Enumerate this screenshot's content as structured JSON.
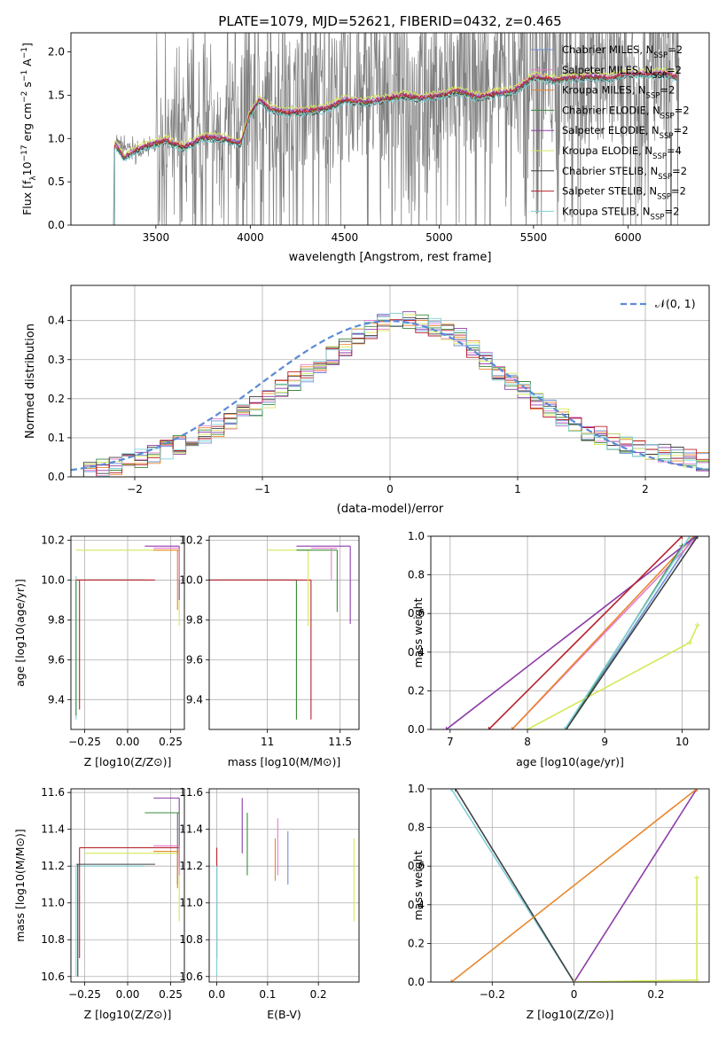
{
  "chart_data": [
    {
      "type": "line",
      "title": "PLATE=1079, MJD=52621, FIBERID=0432, z=0.465",
      "xlabel": "wavelength [Angstrom, rest frame]",
      "ylabel": "Flux [f_λ 10^-17 erg cm^-2 s^-1 A^-1]",
      "xlim": [
        3050,
        6430
      ],
      "ylim": [
        0,
        2.22
      ],
      "xticks": [
        3500,
        4000,
        4500,
        5000,
        5500,
        6000
      ],
      "yticks": [
        0.0,
        0.5,
        1.0,
        1.5,
        2.0
      ],
      "grid": false,
      "legend_position": "top-right",
      "data_series": {
        "name": "",
        "color": "#808080",
        "x_range": [
          3280,
          6270
        ],
        "continuum": [
          [
            3280,
            0.95
          ],
          [
            3400,
            0.85
          ],
          [
            3550,
            0.95
          ],
          [
            3700,
            1.0
          ],
          [
            3900,
            1.1
          ],
          [
            4000,
            1.3
          ],
          [
            4200,
            1.4
          ],
          [
            4500,
            1.45
          ],
          [
            4800,
            1.55
          ],
          [
            5000,
            1.55
          ],
          [
            5200,
            1.6
          ],
          [
            5500,
            1.75
          ],
          [
            5800,
            1.7
          ],
          [
            6000,
            1.75
          ],
          [
            6270,
            1.6
          ]
        ]
      },
      "model_continuum": [
        [
          3280,
          0.95
        ],
        [
          3330,
          0.78
        ],
        [
          3400,
          0.88
        ],
        [
          3500,
          0.95
        ],
        [
          3550,
          0.98
        ],
        [
          3650,
          0.9
        ],
        [
          3750,
          1.02
        ],
        [
          3850,
          1.0
        ],
        [
          3950,
          0.95
        ],
        [
          4000,
          1.3
        ],
        [
          4050,
          1.45
        ],
        [
          4100,
          1.35
        ],
        [
          4200,
          1.3
        ],
        [
          4300,
          1.32
        ],
        [
          4400,
          1.35
        ],
        [
          4500,
          1.45
        ],
        [
          4600,
          1.42
        ],
        [
          4700,
          1.45
        ],
        [
          4800,
          1.5
        ],
        [
          4900,
          1.47
        ],
        [
          5000,
          1.5
        ],
        [
          5100,
          1.55
        ],
        [
          5200,
          1.48
        ],
        [
          5300,
          1.52
        ],
        [
          5400,
          1.55
        ],
        [
          5500,
          1.72
        ],
        [
          5600,
          1.68
        ],
        [
          5700,
          1.7
        ],
        [
          5800,
          1.72
        ],
        [
          5900,
          1.7
        ],
        [
          6000,
          1.75
        ],
        [
          6100,
          1.75
        ],
        [
          6200,
          1.75
        ],
        [
          6250,
          1.72
        ]
      ],
      "series": [
        {
          "name": "Chabrier MILES, N_SSP=2",
          "color": "#6f8fd8",
          "offset": 0.01
        },
        {
          "name": "Salpeter MILES, N_SSP=2",
          "color": "#e77ed0",
          "offset": 0.02
        },
        {
          "name": "Kroupa MILES, N_SSP=2",
          "color": "#e8882e",
          "offset": -0.01
        },
        {
          "name": "Chabrier ELODIE, N_SSP=2",
          "color": "#3b8b3b",
          "offset": -0.02
        },
        {
          "name": "Salpeter ELODIE, N_SSP=2",
          "color": "#8d3ca8",
          "offset": 0.0
        },
        {
          "name": "Kroupa ELODIE, N_SSP=4",
          "color": "#d6e85a",
          "offset": 0.04
        },
        {
          "name": "Chabrier STELIB, N_SSP=2",
          "color": "#404040",
          "offset": -0.03
        },
        {
          "name": "Salpeter STELIB, N_SSP=2",
          "color": "#b8232e",
          "offset": 0.0
        },
        {
          "name": "Kroupa STELIB, N_SSP=2",
          "color": "#7fd0d8",
          "offset": -0.04
        }
      ]
    },
    {
      "type": "line",
      "xlabel": "(data-model)/error",
      "ylabel": "Normed distribution",
      "xlim": [
        -2.5,
        2.5
      ],
      "ylim": [
        0,
        0.49
      ],
      "xticks": [
        -2,
        -1,
        0,
        1,
        2
      ],
      "yticks": [
        0.0,
        0.1,
        0.2,
        0.3,
        0.4
      ],
      "grid": true,
      "legend_position": "top-right",
      "reference": {
        "name": "N(0,1)",
        "color": "#5b8bd6"
      },
      "histogram_bin_width": 0.1,
      "histogram_shape": [
        [
          -2.5,
          0.005
        ],
        [
          -2.0,
          0.04
        ],
        [
          -1.5,
          0.1
        ],
        [
          -1.0,
          0.19
        ],
        [
          -0.5,
          0.3
        ],
        [
          0.0,
          0.41
        ],
        [
          0.5,
          0.37
        ],
        [
          1.0,
          0.23
        ],
        [
          1.5,
          0.12
        ],
        [
          2.0,
          0.07
        ],
        [
          2.5,
          0.035
        ]
      ]
    },
    {
      "type": "scatter",
      "xlabel": "Z [log10(Z/Z⊙)]",
      "ylabel": "age  [log10(age/yr)]",
      "xlim": [
        -0.33,
        0.33
      ],
      "ylim": [
        9.25,
        10.22
      ],
      "xticks": [
        -0.25,
        0.0,
        0.25
      ],
      "xtick_labels": [
        "-0.25",
        "0.00",
        "0.25"
      ],
      "yticks": [
        9.4,
        9.6,
        9.8,
        10.0,
        10.2
      ],
      "grid": true,
      "segments": [
        {
          "color": "#7fd0d8",
          "h": [
            -0.3,
            0.15,
            10.0
          ],
          "v": [
            -0.3,
            9.3,
            10.02
          ]
        },
        {
          "color": "#3b8b3b",
          "h": [
            -0.3,
            0.1,
            10.0
          ],
          "v": [
            -0.3,
            9.32,
            10.0
          ]
        },
        {
          "color": "#b8232e",
          "h": [
            -0.3,
            0.16,
            10.0
          ],
          "v": [
            -0.28,
            9.35,
            10.0
          ]
        },
        {
          "color": "#d6e85a",
          "h": [
            -0.3,
            0.3,
            10.15
          ],
          "v": [
            0.3,
            9.77,
            10.15
          ]
        },
        {
          "color": "#8d3ca8",
          "h": [
            0.1,
            0.3,
            10.17
          ],
          "v": [
            0.3,
            9.9,
            10.17
          ]
        },
        {
          "color": "#e8882e",
          "h": [
            0.15,
            0.3,
            10.15
          ],
          "v": [
            0.29,
            9.85,
            10.15
          ]
        },
        {
          "color": "#e77ed0",
          "h": [
            0.15,
            0.3,
            10.16
          ],
          "v": [
            0.3,
            10.0,
            10.16
          ]
        }
      ]
    },
    {
      "type": "scatter",
      "xlabel": "mass [log10(M/M⊙)]",
      "ylabel": "",
      "xlim": [
        10.6,
        11.63
      ],
      "ylim": [
        9.25,
        10.22
      ],
      "xticks": [
        11.0,
        11.5
      ],
      "yticks": [
        9.4,
        9.6,
        9.8,
        10.0,
        10.2
      ],
      "grid": true,
      "segments": [
        {
          "color": "#7fd0d8",
          "h": [
            10.6,
            11.2,
            10.0
          ],
          "v": [
            11.2,
            9.3,
            10.0
          ]
        },
        {
          "color": "#3b8b3b",
          "h": [
            10.6,
            11.2,
            10.0
          ],
          "v": [
            11.2,
            9.3,
            10.0
          ]
        },
        {
          "color": "#b8232e",
          "h": [
            10.6,
            11.3,
            10.0
          ],
          "v": [
            11.3,
            9.3,
            10.0
          ]
        },
        {
          "color": "#d6e85a",
          "h": [
            11.0,
            11.3,
            10.15
          ],
          "v": [
            11.28,
            9.77,
            10.15
          ]
        },
        {
          "color": "#8d3ca8",
          "h": [
            11.2,
            11.57,
            10.17
          ],
          "v": [
            11.57,
            9.78,
            10.17
          ]
        },
        {
          "color": "#3b8b3b",
          "h": [
            11.2,
            11.48,
            10.15
          ],
          "v": [
            11.48,
            9.84,
            10.15
          ]
        },
        {
          "color": "#e77ed0",
          "h": [
            11.3,
            11.48,
            10.16
          ],
          "v": [
            11.44,
            10.0,
            10.16
          ]
        }
      ]
    },
    {
      "type": "line",
      "xlabel": "age  [log10(age/yr)]",
      "ylabel": "mass weight",
      "xlim": [
        6.75,
        10.35
      ],
      "ylim": [
        0,
        1.0
      ],
      "xticks": [
        7,
        8,
        9,
        10
      ],
      "yticks": [
        0.0,
        0.2,
        0.4,
        0.6,
        0.8,
        1.0
      ],
      "grid": true,
      "series": [
        {
          "name": "Chabrier MILES",
          "color": "#6f8fd8",
          "points": [
            [
              8.5,
              0
            ],
            [
              10.15,
              1.0
            ]
          ]
        },
        {
          "name": "Salpeter MILES",
          "color": "#e77ed0",
          "points": [
            [
              7.8,
              0
            ],
            [
              10.2,
              1.0
            ]
          ]
        },
        {
          "name": "Kroupa MILES",
          "color": "#e8882e",
          "points": [
            [
              7.8,
              0
            ],
            [
              10.15,
              1.0
            ]
          ]
        },
        {
          "name": "Chabrier ELODIE",
          "color": "#3b8b3b",
          "points": [
            [
              8.5,
              0
            ],
            [
              10.0,
              0.95
            ],
            [
              10.2,
              1.0
            ]
          ]
        },
        {
          "name": "Salpeter ELODIE",
          "color": "#8d3ca8",
          "points": [
            [
              6.95,
              0
            ],
            [
              10.18,
              1.0
            ]
          ]
        },
        {
          "name": "Kroupa ELODIE",
          "color": "#d6e85a",
          "points": [
            [
              8.0,
              0
            ],
            [
              10.1,
              0.45
            ],
            [
              10.2,
              0.54
            ]
          ]
        },
        {
          "name": "Chabrier STELIB",
          "color": "#404040",
          "points": [
            [
              8.5,
              0
            ],
            [
              10.2,
              1.0
            ]
          ]
        },
        {
          "name": "Salpeter STELIB",
          "color": "#b8232e",
          "points": [
            [
              7.5,
              0
            ],
            [
              10.0,
              1.0
            ]
          ]
        },
        {
          "name": "Kroupa STELIB",
          "color": "#7fd0d8",
          "points": [
            [
              8.48,
              0
            ],
            [
              10.1,
              1.0
            ]
          ]
        }
      ]
    },
    {
      "type": "scatter",
      "xlabel": "Z [log10(Z/Z⊙)]",
      "ylabel": "mass [log10(M/M⊙)]",
      "xlim": [
        -0.33,
        0.33
      ],
      "ylim": [
        10.57,
        11.62
      ],
      "xticks": [
        -0.25,
        0.0,
        0.25
      ],
      "xtick_labels": [
        "-0.25",
        "0.00",
        "0.25"
      ],
      "yticks": [
        10.6,
        10.8,
        11.0,
        11.2,
        11.4,
        11.6
      ],
      "grid": true,
      "segments": [
        {
          "color": "#7fd0d8",
          "h": [
            -0.3,
            0.1,
            11.2
          ],
          "v": [
            -0.3,
            10.6,
            11.2
          ]
        },
        {
          "color": "#404040",
          "h": [
            -0.3,
            0.16,
            11.21
          ],
          "v": [
            -0.29,
            10.6,
            11.21
          ]
        },
        {
          "color": "#b8232e",
          "h": [
            -0.28,
            0.3,
            11.3
          ],
          "v": [
            -0.28,
            10.7,
            11.3
          ]
        },
        {
          "color": "#d6e85a",
          "h": [
            -0.25,
            0.3,
            11.27
          ],
          "v": [
            0.3,
            10.9,
            11.27
          ]
        },
        {
          "color": "#8d3ca8",
          "h": [
            0.15,
            0.3,
            11.57
          ],
          "v": [
            0.3,
            11.2,
            11.57
          ]
        },
        {
          "color": "#3b8b3b",
          "h": [
            0.1,
            0.3,
            11.49
          ],
          "v": [
            0.29,
            11.1,
            11.49
          ]
        },
        {
          "color": "#e8882e",
          "h": [
            0.15,
            0.3,
            11.28
          ],
          "v": [
            0.29,
            11.08,
            11.28
          ]
        },
        {
          "color": "#e77ed0",
          "h": [
            0.15,
            0.3,
            11.31
          ],
          "v": [
            0.3,
            11.15,
            11.31
          ]
        }
      ]
    },
    {
      "type": "scatter",
      "xlabel": "E(B-V)",
      "ylabel": "",
      "xlim": [
        -0.015,
        0.28
      ],
      "ylim": [
        10.57,
        11.62
      ],
      "xticks": [
        0.0,
        0.1,
        0.2
      ],
      "yticks": [
        10.6,
        10.8,
        11.0,
        11.2,
        11.4,
        11.6
      ],
      "grid": true,
      "segments": [
        {
          "color": "#b8232e",
          "v": [
            0.0,
            10.7,
            11.3
          ]
        },
        {
          "color": "#7fd0d8",
          "v": [
            0.0,
            10.6,
            11.2
          ]
        },
        {
          "color": "#8d3ca8",
          "v": [
            0.05,
            11.27,
            11.57
          ]
        },
        {
          "color": "#3b8b3b",
          "v": [
            0.06,
            11.15,
            11.49
          ]
        },
        {
          "color": "#e77ed0",
          "v": [
            0.12,
            11.15,
            11.46
          ]
        },
        {
          "color": "#e8882e",
          "v": [
            0.115,
            11.12,
            11.35
          ]
        },
        {
          "color": "#6f8fd8",
          "v": [
            0.14,
            11.1,
            11.39
          ]
        },
        {
          "color": "#d6e85a",
          "v": [
            0.27,
            10.9,
            11.35
          ]
        }
      ]
    },
    {
      "type": "line",
      "xlabel": "Z [log10(Z/Z⊙)]",
      "ylabel": "mass weight",
      "xlim": [
        -0.35,
        0.33
      ],
      "ylim": [
        0,
        1.0
      ],
      "xticks": [
        -0.2,
        0.0,
        0.2
      ],
      "yticks": [
        0.0,
        0.2,
        0.4,
        0.6,
        0.8,
        1.0
      ],
      "grid": true,
      "series": [
        {
          "name": "Kroupa STELIB",
          "color": "#7fd0d8",
          "points": [
            [
              -0.3,
              1.0
            ],
            [
              0.0,
              0.0
            ]
          ]
        },
        {
          "name": "Chabrier STELIB",
          "color": "#404040",
          "points": [
            [
              -0.29,
              1.0
            ],
            [
              0.0,
              0.0
            ]
          ]
        },
        {
          "name": "Salpeter ELODIE",
          "color": "#8d3ca8",
          "points": [
            [
              0.0,
              0.0
            ],
            [
              0.3,
              1.0
            ]
          ]
        },
        {
          "name": "Kroupa MILES",
          "color": "#e8882e",
          "points": [
            [
              -0.3,
              0.0
            ],
            [
              0.3,
              1.0
            ]
          ]
        },
        {
          "name": "Kroupa ELODIE",
          "color": "#d6e85a",
          "points": [
            [
              0.0,
              0.0
            ],
            [
              0.3,
              0.01
            ],
            [
              0.3,
              0.54
            ]
          ]
        }
      ]
    }
  ],
  "legend_text": {
    "n": "N",
    "ssp": "SSP",
    "suffix": "=2",
    "suffix4": "=4",
    "labels": [
      "Chabrier MILES, ",
      "Salpeter MILES, ",
      "Kroupa MILES, ",
      "Chabrier ELODIE, ",
      "Salpeter ELODIE, ",
      "Kroupa ELODIE, ",
      "Chabrier STELIB, ",
      "Salpeter STELIB, ",
      "Kroupa STELIB, "
    ]
  },
  "normal_label": "𝒩(0, 1)"
}
